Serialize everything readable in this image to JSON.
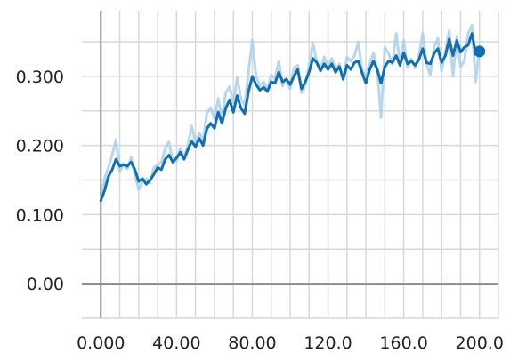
{
  "chart_data": {
    "type": "line",
    "xlim": [
      -10,
      210
    ],
    "ylim": [
      -0.05,
      0.395
    ],
    "x_ticks": [
      0,
      40,
      80,
      120,
      160,
      200
    ],
    "x_tick_labels": [
      "0.000",
      "40.00",
      "80.00",
      "120.0",
      "160.0",
      "200.0"
    ],
    "y_ticks": [
      0,
      0.1,
      0.2,
      0.3
    ],
    "y_tick_labels": [
      "0.00",
      "0.100",
      "0.200",
      "0.300"
    ],
    "x_grid_step": 10,
    "y_grid_step": 0.05,
    "grid": true,
    "colors": {
      "smoothed": "#0f6fb0",
      "raw": "#a9d0ea",
      "grid": "#d8d8d8",
      "axis": "#8a8a8a"
    },
    "series": [
      {
        "role": "raw",
        "x": [
          0,
          2,
          4,
          6,
          8,
          10,
          12,
          14,
          16,
          18,
          20,
          22,
          24,
          26,
          28,
          30,
          32,
          34,
          36,
          38,
          40,
          42,
          44,
          46,
          48,
          50,
          52,
          54,
          56,
          58,
          60,
          62,
          64,
          66,
          68,
          70,
          72,
          74,
          76,
          78,
          80,
          82,
          84,
          86,
          88,
          90,
          92,
          94,
          96,
          98,
          100,
          102,
          104,
          106,
          108,
          110,
          112,
          114,
          116,
          118,
          120,
          122,
          124,
          126,
          128,
          130,
          132,
          134,
          136,
          138,
          140,
          142,
          144,
          146,
          148,
          150,
          152,
          154,
          156,
          158,
          160,
          162,
          164,
          166,
          168,
          170,
          172,
          174,
          176,
          178,
          180,
          182,
          184,
          186,
          188,
          190,
          192,
          194,
          196,
          198,
          200
        ],
        "y": [
          0.12,
          0.152,
          0.168,
          0.186,
          0.208,
          0.162,
          0.174,
          0.166,
          0.183,
          0.158,
          0.136,
          0.148,
          0.152,
          0.146,
          0.168,
          0.172,
          0.176,
          0.195,
          0.205,
          0.175,
          0.178,
          0.196,
          0.183,
          0.2,
          0.228,
          0.204,
          0.218,
          0.207,
          0.246,
          0.255,
          0.238,
          0.268,
          0.24,
          0.276,
          0.285,
          0.262,
          0.298,
          0.268,
          0.258,
          0.306,
          0.352,
          0.3,
          0.286,
          0.292,
          0.28,
          0.302,
          0.296,
          0.322,
          0.286,
          0.296,
          0.282,
          0.312,
          0.316,
          0.276,
          0.288,
          0.316,
          0.348,
          0.322,
          0.31,
          0.328,
          0.314,
          0.326,
          0.31,
          0.318,
          0.295,
          0.328,
          0.322,
          0.33,
          0.35,
          0.308,
          0.302,
          0.318,
          0.334,
          0.31,
          0.24,
          0.342,
          0.333,
          0.317,
          0.362,
          0.318,
          0.352,
          0.313,
          0.325,
          0.312,
          0.33,
          0.362,
          0.318,
          0.302,
          0.342,
          0.355,
          0.308,
          0.336,
          0.366,
          0.3,
          0.358,
          0.314,
          0.322,
          0.362,
          0.374,
          0.292,
          0.342
        ]
      },
      {
        "role": "smoothed",
        "x": [
          0,
          2,
          4,
          6,
          8,
          10,
          12,
          14,
          16,
          18,
          20,
          22,
          24,
          26,
          28,
          30,
          32,
          34,
          36,
          38,
          40,
          42,
          44,
          46,
          48,
          50,
          52,
          54,
          56,
          58,
          60,
          62,
          64,
          66,
          68,
          70,
          72,
          74,
          76,
          78,
          80,
          82,
          84,
          86,
          88,
          90,
          92,
          94,
          96,
          98,
          100,
          102,
          104,
          106,
          108,
          110,
          112,
          114,
          116,
          118,
          120,
          122,
          124,
          126,
          128,
          130,
          132,
          134,
          136,
          138,
          140,
          142,
          144,
          146,
          148,
          150,
          152,
          154,
          156,
          158,
          160,
          162,
          164,
          166,
          168,
          170,
          172,
          174,
          176,
          178,
          180,
          182,
          184,
          186,
          188,
          190,
          192,
          194,
          196,
          198,
          200
        ],
        "y": [
          0.12,
          0.135,
          0.155,
          0.165,
          0.18,
          0.17,
          0.172,
          0.17,
          0.176,
          0.165,
          0.148,
          0.152,
          0.144,
          0.15,
          0.158,
          0.168,
          0.165,
          0.18,
          0.186,
          0.176,
          0.182,
          0.19,
          0.18,
          0.194,
          0.206,
          0.198,
          0.21,
          0.2,
          0.224,
          0.232,
          0.225,
          0.248,
          0.232,
          0.254,
          0.266,
          0.248,
          0.272,
          0.254,
          0.246,
          0.278,
          0.3,
          0.288,
          0.28,
          0.284,
          0.278,
          0.292,
          0.29,
          0.306,
          0.292,
          0.296,
          0.288,
          0.3,
          0.31,
          0.282,
          0.292,
          0.306,
          0.326,
          0.32,
          0.308,
          0.318,
          0.31,
          0.318,
          0.306,
          0.314,
          0.296,
          0.316,
          0.31,
          0.32,
          0.322,
          0.305,
          0.29,
          0.31,
          0.322,
          0.31,
          0.29,
          0.314,
          0.322,
          0.32,
          0.33,
          0.316,
          0.334,
          0.318,
          0.322,
          0.316,
          0.324,
          0.34,
          0.32,
          0.318,
          0.333,
          0.34,
          0.32,
          0.33,
          0.354,
          0.33,
          0.352,
          0.335,
          0.342,
          0.345,
          0.362,
          0.332,
          0.336
        ]
      }
    ]
  }
}
